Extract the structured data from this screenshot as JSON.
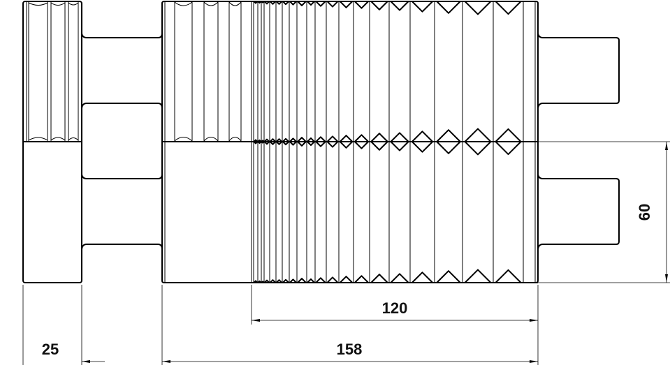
{
  "drawing": {
    "dimensions": {
      "disk_width": "25",
      "body_length": "158",
      "groove_length": "120",
      "half_height": "60"
    },
    "line_color": "#000000",
    "background": "#ffffff"
  }
}
